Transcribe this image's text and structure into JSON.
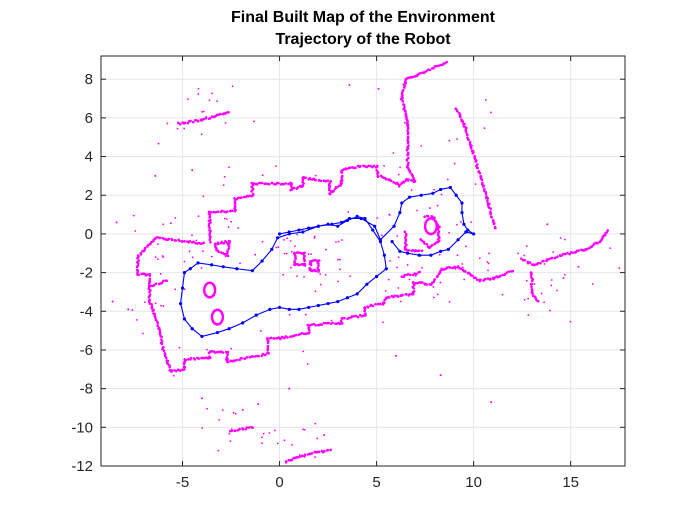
{
  "chart_data": {
    "type": "scatter",
    "title": "Final Built Map of the Environment",
    "subtitle": "Trajectory of the Robot",
    "xlabel": "",
    "ylabel": "",
    "xlim": [
      -9.2,
      17.8
    ],
    "ylim": [
      -12,
      9.2
    ],
    "xticks": [
      -5,
      0,
      5,
      10,
      15
    ],
    "yticks": [
      -12,
      -10,
      -8,
      -6,
      -4,
      -2,
      0,
      2,
      4,
      6,
      8
    ],
    "grid": true,
    "legend": "none",
    "colors": {
      "map": "#ff00ff",
      "trajectory": "#0000ff",
      "axis": "#262626",
      "grid": "#e6e6e6"
    },
    "series": [
      {
        "kind": "map_walls",
        "segments": [
          [
            [
              -6.4,
              -0.2
            ],
            [
              -3.9,
              -0.5
            ]
          ],
          [
            [
              -6.4,
              -0.2
            ],
            [
              -7.3,
              -1.2
            ],
            [
              -7.3,
              -2.1
            ],
            [
              -6.7,
              -2.1
            ],
            [
              -6.7,
              -3.4
            ],
            [
              -6.5,
              -4.0
            ],
            [
              -6.2,
              -4.9
            ],
            [
              -6.0,
              -6.0
            ],
            [
              -5.6,
              -7.1
            ]
          ],
          [
            [
              -5.6,
              -7.1
            ],
            [
              -4.9,
              -7.0
            ],
            [
              -4.9,
              -6.5
            ],
            [
              -3.6,
              -6.4
            ],
            [
              -3.6,
              -6.1
            ],
            [
              -2.7,
              -6.1
            ],
            [
              -2.7,
              -6.6
            ],
            [
              -0.6,
              -6.2
            ],
            [
              -0.6,
              -5.4
            ],
            [
              0.0,
              -5.4
            ]
          ],
          [
            [
              0.0,
              -5.4
            ],
            [
              1.5,
              -5.1
            ],
            [
              1.5,
              -4.7
            ],
            [
              3.2,
              -4.6
            ],
            [
              3.2,
              -4.4
            ],
            [
              4.4,
              -4.2
            ],
            [
              4.4,
              -3.8
            ],
            [
              5.3,
              -3.6
            ],
            [
              5.5,
              -3.3
            ],
            [
              6.9,
              -3.1
            ],
            [
              6.9,
              -2.5
            ],
            [
              7.8,
              -2.6
            ]
          ],
          [
            [
              7.8,
              -2.6
            ],
            [
              8.4,
              -1.8
            ],
            [
              9.2,
              -1.7
            ],
            [
              10.3,
              -2.4
            ],
            [
              11.0,
              -2.3
            ],
            [
              12.0,
              -1.9
            ]
          ],
          [
            [
              12.5,
              -1.3
            ],
            [
              13.1,
              -1.6
            ],
            [
              14.5,
              -1.1
            ],
            [
              15.8,
              -0.8
            ],
            [
              16.5,
              -0.4
            ],
            [
              16.9,
              0.2
            ]
          ],
          [
            [
              -3.6,
              -0.4
            ],
            [
              -3.6,
              1.1
            ],
            [
              -2.3,
              1.2
            ],
            [
              -2.3,
              1.8
            ],
            [
              -1.4,
              2.0
            ],
            [
              -1.4,
              2.6
            ],
            [
              0.6,
              2.6
            ],
            [
              0.6,
              2.3
            ],
            [
              1.2,
              2.5
            ],
            [
              1.2,
              2.9
            ],
            [
              2.6,
              2.7
            ],
            [
              2.6,
              2.1
            ],
            [
              3.2,
              2.6
            ],
            [
              3.2,
              3.3
            ],
            [
              4.1,
              3.5
            ],
            [
              5.0,
              3.5
            ]
          ],
          [
            [
              5.0,
              3.5
            ],
            [
              5.1,
              3.0
            ],
            [
              5.7,
              2.8
            ],
            [
              6.2,
              2.5
            ],
            [
              6.5,
              2.8
            ],
            [
              7.0,
              2.7
            ],
            [
              6.6,
              3.5
            ],
            [
              6.6,
              5.7
            ],
            [
              6.3,
              7.0
            ],
            [
              6.5,
              8.0
            ],
            [
              7.1,
              8.2
            ],
            [
              8.6,
              8.9
            ]
          ],
          [
            [
              9.1,
              6.5
            ],
            [
              9.5,
              5.7
            ],
            [
              10.1,
              3.8
            ],
            [
              10.7,
              1.8
            ],
            [
              11.1,
              0.3
            ]
          ],
          [
            [
              -2.6,
              -0.4
            ],
            [
              -3.3,
              -0.5
            ],
            [
              -3.2,
              -0.9
            ],
            [
              -2.7,
              -1.1
            ],
            [
              -2.6,
              -0.4
            ]
          ],
          [
            [
              -5.2,
              5.7
            ],
            [
              -4.0,
              5.9
            ],
            [
              -3.3,
              6.1
            ],
            [
              -2.6,
              6.3
            ]
          ],
          [
            [
              -2.5,
              -10.2
            ],
            [
              -1.4,
              -10.0
            ]
          ],
          [
            [
              0.3,
              -11.8
            ],
            [
              0.8,
              -11.6
            ],
            [
              1.8,
              -11.3
            ],
            [
              2.6,
              -11.2
            ]
          ],
          [
            [
              13.0,
              -2.0
            ],
            [
              13.0,
              -3.0
            ],
            [
              13.3,
              -3.5
            ]
          ],
          [
            [
              -6.6,
              -2.7
            ],
            [
              -5.8,
              -2.4
            ]
          ],
          [
            [
              7.5,
              0.9
            ],
            [
              7.9,
              0.9
            ],
            [
              8.2,
              0.4
            ],
            [
              8.2,
              -0.4
            ],
            [
              7.7,
              -0.7
            ],
            [
              7.3,
              -0.3
            ]
          ],
          [
            [
              6.5,
              0.1
            ],
            [
              6.5,
              -0.8
            ],
            [
              7.3,
              -0.9
            ]
          ],
          [
            [
              6.3,
              -2.2
            ],
            [
              7.2,
              -2.0
            ]
          ],
          [
            [
              0.8,
              -1.0
            ],
            [
              1.3,
              -1.0
            ],
            [
              1.3,
              -1.6
            ],
            [
              0.8,
              -1.6
            ],
            [
              0.8,
              -1.0
            ]
          ],
          [
            [
              1.6,
              -1.4
            ],
            [
              2.0,
              -1.4
            ],
            [
              2.0,
              -1.9
            ],
            [
              1.6,
              -1.9
            ],
            [
              1.6,
              -1.4
            ]
          ]
        ],
        "rings": [
          {
            "center": [
              -3.6,
              -2.9
            ],
            "radius": 0.28
          },
          {
            "center": [
              -3.2,
              -4.3
            ],
            "radius": 0.28
          },
          {
            "center": [
              7.8,
              0.4
            ],
            "radius": 0.3
          }
        ]
      },
      {
        "kind": "trajectory",
        "points": [
          [
            0.0,
            0.0
          ],
          [
            0.5,
            0.1
          ],
          [
            1.0,
            0.2
          ],
          [
            1.5,
            0.3
          ],
          [
            2.0,
            0.4
          ],
          [
            2.5,
            0.5
          ],
          [
            3.0,
            0.4
          ],
          [
            3.5,
            0.7
          ],
          [
            4.0,
            0.9
          ],
          [
            4.4,
            0.8
          ],
          [
            4.8,
            0.2
          ],
          [
            5.2,
            -0.4
          ],
          [
            5.4,
            -1.1
          ],
          [
            5.5,
            -1.8
          ],
          [
            5.0,
            -2.2
          ],
          [
            4.5,
            -2.6
          ],
          [
            4.0,
            -3.1
          ],
          [
            3.5,
            -3.3
          ],
          [
            3.0,
            -3.5
          ],
          [
            2.5,
            -3.6
          ],
          [
            2.0,
            -3.7
          ],
          [
            1.5,
            -3.8
          ],
          [
            1.0,
            -3.9
          ],
          [
            0.5,
            -3.9
          ],
          [
            0.0,
            -3.8
          ],
          [
            -0.5,
            -3.9
          ],
          [
            -1.2,
            -4.2
          ],
          [
            -1.9,
            -4.6
          ],
          [
            -2.6,
            -4.9
          ],
          [
            -3.2,
            -5.1
          ],
          [
            -4.0,
            -5.3
          ],
          [
            -4.5,
            -4.9
          ],
          [
            -4.9,
            -4.4
          ],
          [
            -5.1,
            -3.6
          ],
          [
            -5.0,
            -2.8
          ],
          [
            -4.9,
            -2.0
          ],
          [
            -4.6,
            -1.8
          ],
          [
            -4.2,
            -1.5
          ],
          [
            -3.5,
            -1.6
          ],
          [
            -2.9,
            -1.7
          ],
          [
            -2.2,
            -1.8
          ],
          [
            -1.4,
            -1.9
          ],
          [
            -0.9,
            -1.4
          ],
          [
            -0.4,
            -0.8
          ],
          [
            -0.1,
            -0.2
          ],
          [
            0.5,
            0.0
          ],
          [
            1.2,
            0.1
          ],
          [
            2.0,
            0.4
          ],
          [
            2.7,
            0.5
          ],
          [
            3.2,
            0.6
          ],
          [
            3.6,
            0.8
          ],
          [
            4.2,
            0.8
          ],
          [
            4.9,
            0.4
          ],
          [
            5.2,
            -0.3
          ],
          [
            5.9,
            0.4
          ],
          [
            6.2,
            1.1
          ],
          [
            6.3,
            1.6
          ],
          [
            6.7,
            1.9
          ],
          [
            7.3,
            2.0
          ],
          [
            7.9,
            2.1
          ],
          [
            8.3,
            2.3
          ],
          [
            8.8,
            2.4
          ],
          [
            9.1,
            2.0
          ],
          [
            9.4,
            1.6
          ],
          [
            9.4,
            1.1
          ],
          [
            9.5,
            0.5
          ],
          [
            9.7,
            0.2
          ],
          [
            10.0,
            0.0
          ],
          [
            9.6,
            0.1
          ],
          [
            9.2,
            -0.3
          ],
          [
            8.7,
            -0.8
          ],
          [
            8.3,
            -0.9
          ],
          [
            7.8,
            -1.1
          ],
          [
            7.2,
            -1.1
          ],
          [
            6.6,
            -1.0
          ],
          [
            6.2,
            -0.9
          ],
          [
            5.8,
            -0.4
          ]
        ]
      }
    ]
  }
}
